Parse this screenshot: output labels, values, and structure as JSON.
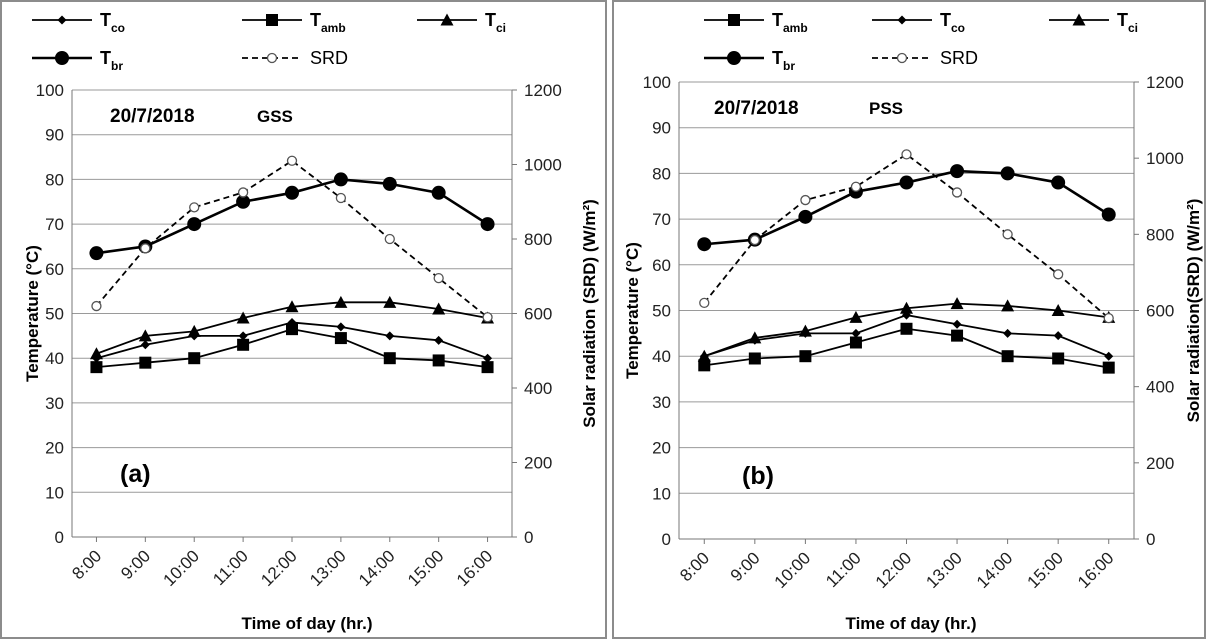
{
  "chart_data": [
    {
      "type": "line",
      "date": "20/7/2018",
      "system": "GSS",
      "panel_label": "(a)",
      "x": [
        "8:00",
        "9:00",
        "10:00",
        "11:00",
        "12:00",
        "13:00",
        "14:00",
        "15:00",
        "16:00"
      ],
      "xlabel": "Time of day (hr.)",
      "ylabel_left": "Temperature (°C)",
      "ylabel_right": "Solar radiation (SRD) (W/m²)",
      "ylim_left": [
        0,
        100
      ],
      "ylim_right": [
        0,
        1200
      ],
      "yticks_left": [
        "0",
        "10",
        "20",
        "30",
        "40",
        "50",
        "60",
        "70",
        "80",
        "90",
        "100"
      ],
      "yticks_right": [
        "0",
        "200",
        "400",
        "600",
        "800",
        "1000",
        "1200"
      ],
      "grid": true,
      "legend_order": [
        "T_co",
        "T_amb",
        "T_ci",
        "T_br",
        "SRD"
      ],
      "series": [
        {
          "name": "T_co",
          "base": "T",
          "sub": "co",
          "axis": "left",
          "marker": "diamond",
          "dash": false,
          "values": [
            40,
            43,
            45,
            45,
            48,
            47,
            45,
            44,
            40
          ]
        },
        {
          "name": "T_amb",
          "base": "T",
          "sub": "amb",
          "axis": "left",
          "marker": "square",
          "dash": false,
          "values": [
            38,
            39,
            40,
            43,
            46.5,
            44.5,
            40,
            39.5,
            38
          ]
        },
        {
          "name": "T_ci",
          "base": "T",
          "sub": "ci",
          "axis": "left",
          "marker": "triangle",
          "dash": false,
          "values": [
            41,
            45,
            46,
            49,
            51.5,
            52.5,
            52.5,
            51,
            49
          ]
        },
        {
          "name": "T_br",
          "base": "T",
          "sub": "br",
          "axis": "left",
          "marker": "circle",
          "dash": false,
          "values": [
            63.5,
            65,
            70,
            75,
            77,
            80,
            79,
            77,
            70
          ]
        },
        {
          "name": "SRD",
          "base": "SRD",
          "sub": "",
          "axis": "right",
          "marker": "open-circle",
          "dash": true,
          "values": [
            620,
            775,
            885,
            925,
            1010,
            910,
            800,
            695,
            590
          ]
        }
      ]
    },
    {
      "type": "line",
      "date": "20/7/2018",
      "system": "PSS",
      "panel_label": "(b)",
      "x": [
        "8:00",
        "9:00",
        "10:00",
        "11:00",
        "12:00",
        "13:00",
        "14:00",
        "15:00",
        "16:00"
      ],
      "xlabel": "Time of day (hr.)",
      "ylabel_left": "Temperature (°C)",
      "ylabel_right": "Solar radiation(SRD) (W/m²)",
      "ylim_left": [
        0,
        100
      ],
      "ylim_right": [
        0,
        1200
      ],
      "yticks_left": [
        "0",
        "10",
        "20",
        "30",
        "40",
        "50",
        "60",
        "70",
        "80",
        "90",
        "100"
      ],
      "yticks_right": [
        "0",
        "200",
        "400",
        "600",
        "800",
        "1000",
        "1200"
      ],
      "grid": true,
      "legend_order": [
        "T_amb",
        "T_co",
        "T_ci",
        "T_br",
        "SRD"
      ],
      "series": [
        {
          "name": "T_co",
          "base": "T",
          "sub": "co",
          "axis": "left",
          "marker": "diamond",
          "dash": false,
          "values": [
            40,
            43.5,
            45,
            45,
            49,
            47,
            45,
            44.5,
            40
          ]
        },
        {
          "name": "T_amb",
          "base": "T",
          "sub": "amb",
          "axis": "left",
          "marker": "square",
          "dash": false,
          "values": [
            38,
            39.5,
            40,
            43,
            46,
            44.5,
            40,
            39.5,
            37.5
          ]
        },
        {
          "name": "T_ci",
          "base": "T",
          "sub": "ci",
          "axis": "left",
          "marker": "triangle",
          "dash": false,
          "values": [
            40,
            44,
            45.5,
            48.5,
            50.5,
            51.5,
            51,
            50,
            48.5
          ]
        },
        {
          "name": "T_br",
          "base": "T",
          "sub": "br",
          "axis": "left",
          "marker": "circle",
          "dash": false,
          "values": [
            64.5,
            65.5,
            70.5,
            76,
            78,
            80.5,
            80,
            78,
            71
          ]
        },
        {
          "name": "SRD",
          "base": "SRD",
          "sub": "",
          "axis": "right",
          "marker": "open-circle",
          "dash": true,
          "values": [
            620,
            785,
            890,
            925,
            1010,
            910,
            800,
            695,
            580
          ]
        }
      ]
    }
  ]
}
